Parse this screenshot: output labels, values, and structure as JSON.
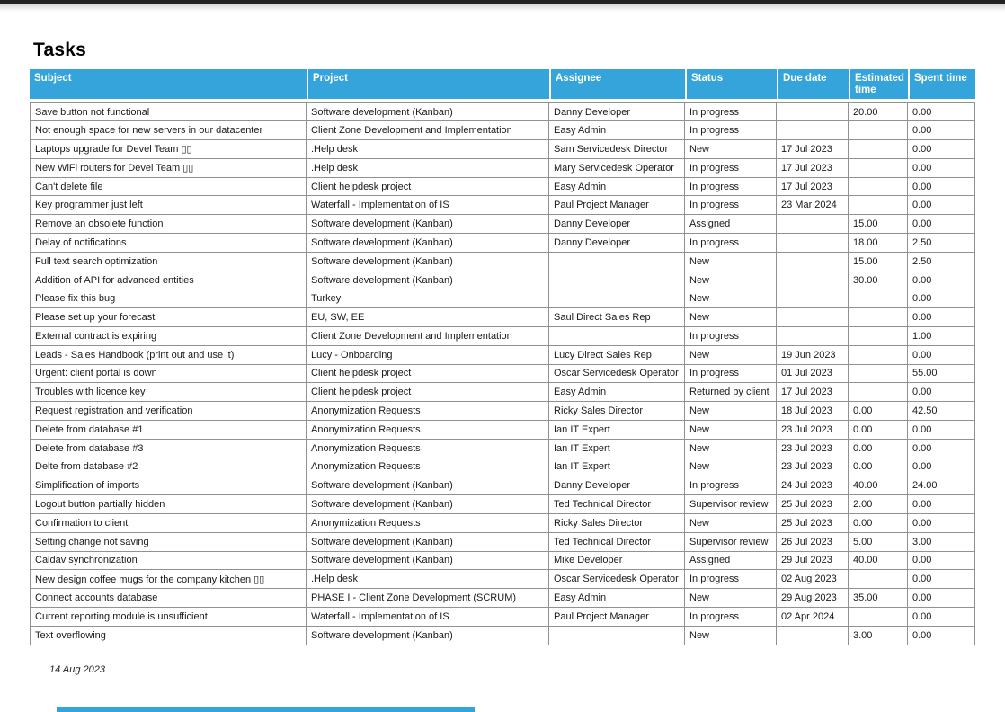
{
  "page": {
    "title": "Tasks",
    "footer_date": "14 Aug 2023"
  },
  "colors": {
    "header_bg": "#35a4db",
    "table_border": "#919191",
    "top_bar": "#212121"
  },
  "table": {
    "columns": [
      "Subject",
      "Project",
      "Assignee",
      "Status",
      "Due date",
      "Estimated time",
      "Spent time"
    ],
    "rows": [
      [
        "Save button not functional",
        "Software development (Kanban)",
        "Danny Developer",
        "In progress",
        "",
        "20.00",
        "0.00"
      ],
      [
        "Not enough space for new servers in our datacenter",
        "Client Zone Development and Implementation",
        "Easy Admin",
        "In progress",
        "",
        "",
        "0.00"
      ],
      [
        "Laptops upgrade for Devel Team ▯▯",
        ".Help desk",
        "Sam Servicedesk Director",
        "New",
        "17 Jul 2023",
        "",
        "0.00"
      ],
      [
        "New WiFi routers for Devel Team ▯▯",
        ".Help desk",
        "Mary Servicedesk Operator",
        "In progress",
        "17 Jul 2023",
        "",
        "0.00"
      ],
      [
        "Can't delete file",
        "Client helpdesk project",
        "Easy Admin",
        "In progress",
        "17 Jul 2023",
        "",
        "0.00"
      ],
      [
        "Key programmer just left",
        "Waterfall - Implementation of IS",
        "Paul Project Manager",
        "In progress",
        "23 Mar 2024",
        "",
        "0.00"
      ],
      [
        "Remove an obsolete function",
        "Software development (Kanban)",
        "Danny Developer",
        "Assigned",
        "",
        "15.00",
        "0.00"
      ],
      [
        "Delay of notifications",
        "Software development (Kanban)",
        "Danny Developer",
        "In progress",
        "",
        "18.00",
        "2.50"
      ],
      [
        "Full text search optimization",
        "Software development (Kanban)",
        "",
        "New",
        "",
        "15.00",
        "2.50"
      ],
      [
        "Addition of API for advanced entities",
        "Software development (Kanban)",
        "",
        "New",
        "",
        "30.00",
        "0.00"
      ],
      [
        "Please fix this bug",
        "Turkey",
        "",
        "New",
        "",
        "",
        "0.00"
      ],
      [
        "Please set up your forecast",
        "EU, SW, EE",
        "Saul Direct Sales Rep",
        "New",
        "",
        "",
        "0.00"
      ],
      [
        "External contract is expiring",
        "Client Zone Development and Implementation",
        "",
        "In progress",
        "",
        "",
        "1.00"
      ],
      [
        "Leads - Sales Handbook (print out and use it)",
        "Lucy - Onboarding",
        "Lucy Direct Sales Rep",
        "New",
        "19 Jun 2023",
        "",
        "0.00"
      ],
      [
        "Urgent: client portal is down",
        "Client helpdesk project",
        "Oscar Servicedesk Operator",
        "In progress",
        "01 Jul 2023",
        "",
        "55.00"
      ],
      [
        "Troubles with licence key",
        "Client helpdesk project",
        "Easy Admin",
        "Returned by client",
        "17 Jul 2023",
        "",
        "0.00"
      ],
      [
        "Request registration and verification",
        "Anonymization Requests",
        "Ricky Sales Director",
        "New",
        "18 Jul 2023",
        "0.00",
        "42.50"
      ],
      [
        "Delete from database #1",
        "Anonymization Requests",
        "Ian IT Expert",
        "New",
        "23 Jul 2023",
        "0.00",
        "0.00"
      ],
      [
        "Delete from database #3",
        "Anonymization Requests",
        "Ian IT Expert",
        "New",
        "23 Jul 2023",
        "0.00",
        "0.00"
      ],
      [
        "Delte from database #2",
        "Anonymization Requests",
        "Ian IT Expert",
        "New",
        "23 Jul 2023",
        "0.00",
        "0.00"
      ],
      [
        "Simplification of imports",
        "Software development (Kanban)",
        "Danny Developer",
        "In progress",
        "24 Jul 2023",
        "40.00",
        "24.00"
      ],
      [
        "Logout button partially hidden",
        "Software development (Kanban)",
        "Ted Technical Director",
        "Supervisor review",
        "25 Jul 2023",
        "2.00",
        "0.00"
      ],
      [
        "Confirmation to client",
        "Anonymization Requests",
        "Ricky Sales Director",
        "New",
        "25 Jul 2023",
        "0.00",
        "0.00"
      ],
      [
        "Setting change not saving",
        "Software development (Kanban)",
        "Ted Technical Director",
        "Supervisor review",
        "26 Jul 2023",
        "5.00",
        "3.00"
      ],
      [
        "Caldav synchronization",
        "Software development (Kanban)",
        "Mike Developer",
        "Assigned",
        "29 Jul 2023",
        "40.00",
        "0.00"
      ],
      [
        "New design coffee mugs for the company kitchen ▯▯",
        ".Help desk",
        "Oscar Servicedesk Operator",
        "In progress",
        "02 Aug 2023",
        "",
        "0.00"
      ],
      [
        "Connect accounts database",
        "PHASE I - Client Zone Development (SCRUM)",
        "Easy Admin",
        "New",
        "29 Aug 2023",
        "35.00",
        "0.00"
      ],
      [
        "Current reporting module is unsufficient",
        "Waterfall - Implementation of IS",
        "Paul Project Manager",
        "In progress",
        "02 Apr 2024",
        "",
        "0.00"
      ],
      [
        "Text overflowing",
        "Software development (Kanban)",
        "",
        "New",
        "",
        "3.00",
        "0.00"
      ]
    ]
  }
}
